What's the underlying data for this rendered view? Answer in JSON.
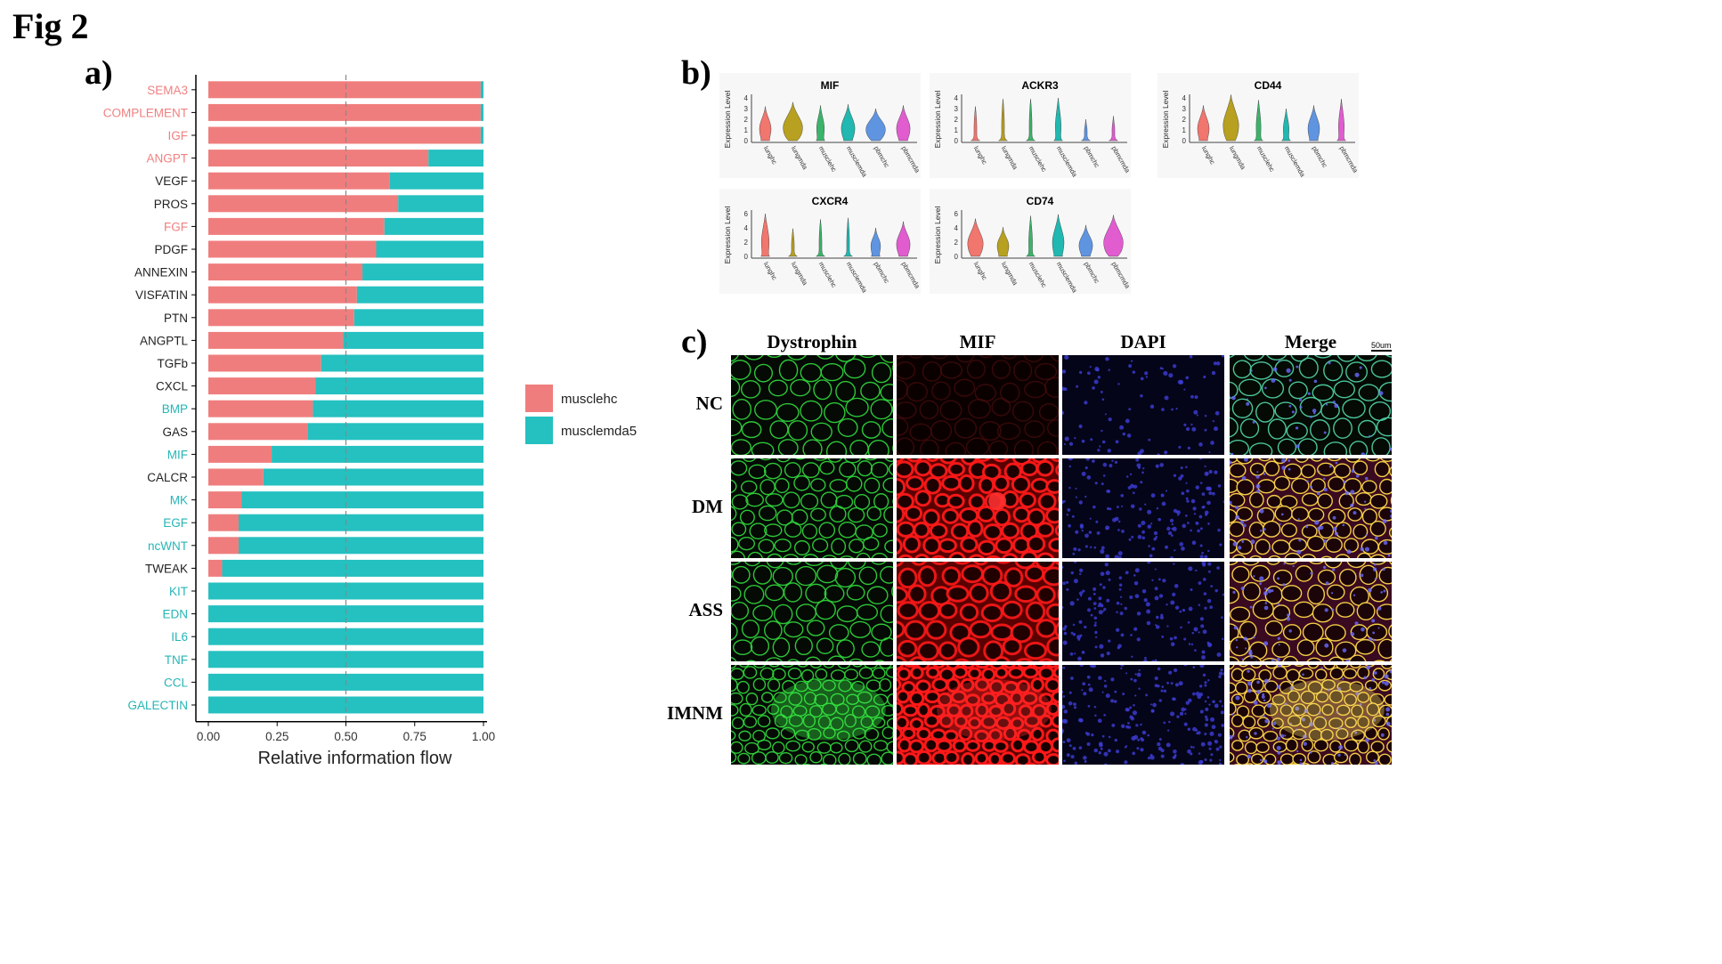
{
  "figure": {
    "title": "Fig 2"
  },
  "panels": {
    "a": "a)",
    "b": "b)",
    "c": "c)"
  },
  "chart_data": [
    {
      "type": "bar",
      "orientation": "horizontal-stacked",
      "xlabel": "Relative information flow",
      "xlim": [
        0,
        1
      ],
      "xticks": [
        "0.00",
        "0.25",
        "0.50",
        "0.75",
        "1.00"
      ],
      "reference_line": 0.5,
      "legend_position": "right",
      "categories": [
        "SEMA3",
        "COMPLEMENT",
        "IGF",
        "ANGPT",
        "VEGF",
        "PROS",
        "FGF",
        "PDGF",
        "ANNEXIN",
        "VISFATIN",
        "PTN",
        "ANGPTL",
        "TGFb",
        "CXCL",
        "BMP",
        "GAS",
        "MIF",
        "CALCR",
        "MK",
        "EGF",
        "ncWNT",
        "TWEAK",
        "KIT",
        "EDN",
        "IL6",
        "TNF",
        "CCL",
        "GALECTIN"
      ],
      "label_colors": [
        "#f08080",
        "#f08080",
        "#f08080",
        "#f08080",
        "#222222",
        "#222222",
        "#f08080",
        "#222222",
        "#222222",
        "#222222",
        "#222222",
        "#222222",
        "#222222",
        "#222222",
        "#26b5b5",
        "#222222",
        "#26b5b5",
        "#222222",
        "#26b5b5",
        "#26b5b5",
        "#26b5b5",
        "#222222",
        "#26b5b5",
        "#26b5b5",
        "#26b5b5",
        "#26b5b5",
        "#26b5b5",
        "#26b5b5"
      ],
      "series": [
        {
          "name": "musclehc",
          "color": "#f07d7d",
          "values": [
            0.99,
            0.99,
            0.99,
            0.8,
            0.66,
            0.69,
            0.64,
            0.61,
            0.56,
            0.54,
            0.53,
            0.49,
            0.41,
            0.39,
            0.38,
            0.36,
            0.23,
            0.2,
            0.12,
            0.11,
            0.11,
            0.05,
            0,
            0,
            0,
            0,
            0,
            0
          ]
        },
        {
          "name": "musclemda5",
          "color": "#25c0c0",
          "values": [
            0.01,
            0.01,
            0.01,
            0.2,
            0.34,
            0.31,
            0.36,
            0.39,
            0.44,
            0.46,
            0.47,
            0.51,
            0.59,
            0.61,
            0.62,
            0.64,
            0.77,
            0.8,
            0.88,
            0.89,
            0.89,
            0.95,
            1,
            1,
            1,
            1,
            1,
            1
          ]
        }
      ]
    },
    {
      "type": "violin",
      "ylabel": "Expression Level",
      "categories": [
        "lunghc",
        "lungmda",
        "musclehc",
        "musclemda",
        "pbmchc",
        "pbmcmda"
      ],
      "category_colors": [
        "#f0766e",
        "#b8a020",
        "#3bb36a",
        "#20b8b0",
        "#5f94e0",
        "#e05ccf"
      ],
      "plots": [
        {
          "title": "MIF",
          "yticks": [
            "0",
            "1",
            "2",
            "3",
            "4"
          ],
          "max": [
            3.2,
            3.6,
            3.3,
            3.4,
            3.0,
            3.3
          ],
          "width": [
            0.5,
            0.9,
            0.3,
            0.6,
            0.9,
            0.6
          ]
        },
        {
          "title": "ACKR3",
          "yticks": [
            "0",
            "1",
            "2",
            "3",
            "4"
          ],
          "max": [
            3.2,
            3.9,
            3.9,
            4.0,
            2.0,
            2.3
          ],
          "width": [
            0.05,
            0.05,
            0.05,
            0.2,
            0.05,
            0.05
          ]
        },
        {
          "title": "CD44",
          "yticks": [
            "0",
            "1",
            "2",
            "3",
            "4"
          ],
          "max": [
            3.3,
            4.3,
            3.8,
            3.0,
            3.3,
            3.9
          ],
          "width": [
            0.5,
            0.7,
            0.15,
            0.2,
            0.5,
            0.2
          ]
        },
        {
          "title": "CXCR4",
          "yticks": [
            "0",
            "2",
            "4",
            "6"
          ],
          "max": [
            6.0,
            3.9,
            5.2,
            5.4,
            4.0,
            4.9
          ],
          "width": [
            0.3,
            0.05,
            0.05,
            0.05,
            0.4,
            0.6
          ]
        },
        {
          "title": "CD74",
          "yticks": [
            "0",
            "2",
            "4",
            "6"
          ],
          "max": [
            5.3,
            4.1,
            5.7,
            5.9,
            4.4,
            5.8
          ],
          "width": [
            0.7,
            0.5,
            0.1,
            0.5,
            0.6,
            0.9
          ]
        }
      ]
    }
  ],
  "microscopy": {
    "columns": [
      "Dystrophin",
      "MIF",
      "DAPI",
      "Merge"
    ],
    "rows": [
      "NC",
      "DM",
      "ASS",
      "IMNM"
    ],
    "scale_bar": "50um"
  }
}
